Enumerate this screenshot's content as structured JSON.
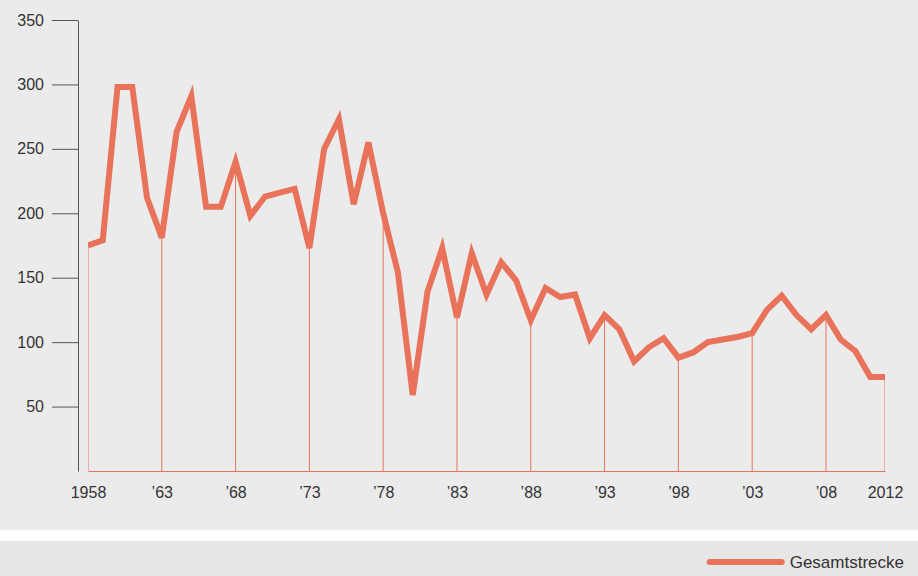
{
  "chart_data": {
    "type": "line",
    "x": [
      1958,
      1959,
      1960,
      1961,
      1962,
      1963,
      1964,
      1965,
      1966,
      1967,
      1968,
      1969,
      1970,
      1971,
      1972,
      1973,
      1974,
      1975,
      1976,
      1977,
      1978,
      1979,
      1980,
      1981,
      1982,
      1983,
      1984,
      1985,
      1986,
      1987,
      1988,
      1989,
      1990,
      1991,
      1992,
      1993,
      1994,
      1995,
      1996,
      1997,
      1998,
      1999,
      2000,
      2001,
      2002,
      2003,
      2004,
      2005,
      2006,
      2007,
      2008,
      2009,
      2010,
      2011,
      2012
    ],
    "series": [
      {
        "name": "Gesamtstrecke",
        "color": "#e8735a",
        "values": [
          175,
          179,
          298,
          298,
          212,
          181,
          263,
          291,
          205,
          205,
          240,
          198,
          213,
          216,
          219,
          173,
          250,
          273,
          207,
          255,
          200,
          154,
          59,
          139,
          173,
          119,
          169,
          137,
          162,
          148,
          117,
          142,
          135,
          137,
          103,
          121,
          110,
          85,
          96,
          103,
          88,
          92,
          100,
          102,
          104,
          107,
          125,
          136,
          121,
          110,
          121,
          102,
          93,
          73,
          73
        ]
      }
    ],
    "xlim": [
      1958,
      2012
    ],
    "xticks": [
      {
        "value": 1958,
        "label": "1958"
      },
      {
        "value": 1963,
        "label": "’63"
      },
      {
        "value": 1968,
        "label": "’68"
      },
      {
        "value": 1973,
        "label": "’73"
      },
      {
        "value": 1978,
        "label": "’78"
      },
      {
        "value": 1983,
        "label": "’83"
      },
      {
        "value": 1988,
        "label": "’88"
      },
      {
        "value": 1993,
        "label": "’93"
      },
      {
        "value": 1998,
        "label": "’98"
      },
      {
        "value": 2003,
        "label": "’03"
      },
      {
        "value": 2008,
        "label": "’08"
      },
      {
        "value": 2012,
        "label": "2012"
      }
    ],
    "ylim": [
      0,
      350
    ],
    "yticks": [
      50,
      100,
      150,
      200,
      250,
      300,
      350
    ],
    "grid": true,
    "legend": "bottom-right"
  }
}
